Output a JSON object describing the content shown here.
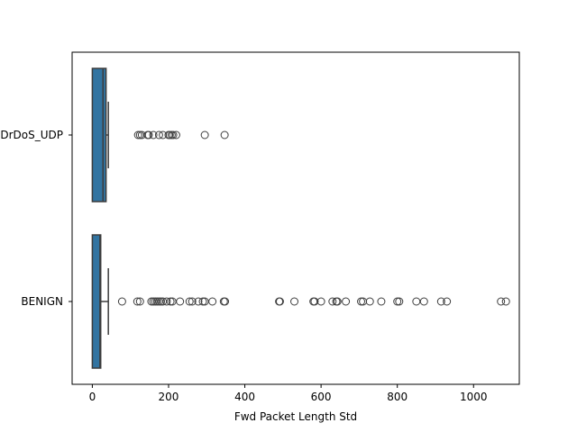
{
  "chart_data": {
    "type": "boxplot",
    "orientation": "horizontal",
    "xlabel": "Fwd Packet Length Std",
    "ylabel": "",
    "xlim": [
      -53,
      1120
    ],
    "xticks": [
      0,
      200,
      400,
      600,
      800,
      1000
    ],
    "grid": false,
    "box_color": "#3274a1",
    "edge_color": "#3d3d3d",
    "categories": [
      {
        "label": "DrDoS_UDP",
        "whisker_low": 0,
        "q1": 0,
        "median": 28,
        "q3": 36,
        "whisker_high": 42,
        "outliers": [
          120,
          125,
          130,
          145,
          148,
          160,
          175,
          185,
          200,
          203,
          208,
          212,
          220,
          295,
          347
        ]
      },
      {
        "label": "BENIGN",
        "whisker_low": 0,
        "q1": 0,
        "median": 20,
        "q3": 22,
        "whisker_high": 42,
        "outliers": [
          78,
          118,
          125,
          155,
          160,
          165,
          170,
          175,
          180,
          185,
          195,
          205,
          210,
          230,
          255,
          262,
          278,
          290,
          295,
          315,
          345,
          348,
          490,
          492,
          530,
          580,
          583,
          600,
          630,
          640,
          643,
          665,
          705,
          710,
          728,
          758,
          800,
          805,
          850,
          870,
          915,
          930,
          1072,
          1085
        ]
      }
    ]
  }
}
